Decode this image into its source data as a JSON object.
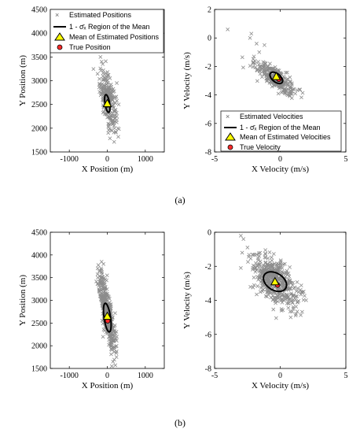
{
  "figure": {
    "label_a": "(a)",
    "label_b": "(b)"
  },
  "legend_position": {
    "labels": [
      "Estimated Positions",
      "1 - σ̄ₓ Region of the Mean",
      "Mean of Estimated Positions",
      "True Position"
    ]
  },
  "legend_velocity": {
    "labels": [
      "Estimated Velocities",
      "1 - σ̄ₓ Region of the Mean",
      "Mean of Estimated Velocities",
      "True Velocity"
    ]
  },
  "colors": {
    "scatter": "#8c8c8c",
    "ellipse": "#000000",
    "mean_fill": "#ffff00",
    "true_fill": "#ff2a2a"
  },
  "chart_data": [
    {
      "id": "a-position",
      "type": "scatter",
      "xlabel": "X Position (m)",
      "ylabel": "Y Position (m)",
      "xlim": [
        -1500,
        1500
      ],
      "ylim": [
        1500,
        4500
      ],
      "xticks": [
        -1000,
        0,
        1000
      ],
      "yticks": [
        1500,
        2000,
        2500,
        3000,
        3500,
        4000,
        4500
      ],
      "legend_placement": "top-left",
      "mean": [
        0,
        2520
      ],
      "true": [
        10,
        2490
      ],
      "ellipse": {
        "center": [
          0,
          2520
        ],
        "rx": 60,
        "ry": 190,
        "angle_deg": 12
      },
      "cloud": {
        "center": [
          20,
          2600
        ],
        "sx": 110,
        "sy": 290,
        "corr": -0.55,
        "count": 260
      },
      "outliers": [
        [
          -200,
          3650
        ],
        [
          -180,
          3500
        ],
        [
          -150,
          3400
        ],
        [
          -120,
          3350
        ],
        [
          250,
          2950
        ],
        [
          300,
          2500
        ],
        [
          280,
          2000
        ],
        [
          250,
          2250
        ]
      ]
    },
    {
      "id": "a-velocity",
      "type": "scatter",
      "xlabel": "X Velocity (m/s)",
      "ylabel": "Y Velocity (m/s)",
      "xlim": [
        -5,
        5
      ],
      "ylim": [
        -8,
        2
      ],
      "xticks": [
        -5,
        0,
        5
      ],
      "yticks": [
        -8,
        -6,
        -4,
        -2,
        0,
        2
      ],
      "legend_placement": "bottom-right",
      "mean": [
        -0.3,
        -2.7
      ],
      "true": [
        -0.1,
        -2.9
      ],
      "ellipse": {
        "center": [
          -0.3,
          -2.8
        ],
        "rx": 0.55,
        "ry": 0.3,
        "angle_deg": -35
      },
      "cloud": {
        "center": [
          -0.4,
          -2.8
        ],
        "sx": 0.75,
        "sy": 0.6,
        "corr": -0.8,
        "count": 300
      },
      "outliers": [
        [
          -4.0,
          0.6
        ],
        [
          -2.2,
          0.3
        ],
        [
          -2.3,
          0.0
        ],
        [
          -1.8,
          -0.4
        ],
        [
          -1.2,
          -0.5
        ],
        [
          -1.6,
          -1.0
        ],
        [
          -2.0,
          -1.3
        ],
        [
          0.8,
          -3.7
        ]
      ]
    },
    {
      "id": "b-position",
      "type": "scatter",
      "xlabel": "X Position (m)",
      "ylabel": "Y Position (m)",
      "xlim": [
        -1500,
        1500
      ],
      "ylim": [
        1500,
        4500
      ],
      "xticks": [
        -1000,
        0,
        1000
      ],
      "yticks": [
        1500,
        2000,
        2500,
        3000,
        3500,
        4000,
        4500
      ],
      "legend_placement": "none",
      "mean": [
        0,
        2650
      ],
      "true": [
        10,
        2550
      ],
      "ellipse": {
        "center": [
          0,
          2620
        ],
        "rx": 85,
        "ry": 320,
        "angle_deg": 10
      },
      "cloud": {
        "center": [
          0,
          2700
        ],
        "sx": 110,
        "sy": 430,
        "corr": -0.8,
        "count": 420
      },
      "outliers": [
        [
          -150,
          3850
        ],
        [
          -100,
          3800
        ],
        [
          -250,
          3500
        ],
        [
          150,
          1650
        ],
        [
          120,
          1550
        ],
        [
          200,
          2450
        ],
        [
          250,
          2200
        ]
      ]
    },
    {
      "id": "b-velocity",
      "type": "scatter",
      "xlabel": "X Velocity (m/s)",
      "ylabel": "Y Velocity (m/s)",
      "xlim": [
        -5,
        5
      ],
      "ylim": [
        -8,
        0
      ],
      "xticks": [
        -5,
        0,
        5
      ],
      "yticks": [
        -8,
        -6,
        -4,
        -2,
        0
      ],
      "legend_placement": "none",
      "mean": [
        -0.4,
        -2.9
      ],
      "true": [
        -0.2,
        -3.1
      ],
      "ellipse": {
        "center": [
          -0.4,
          -2.9
        ],
        "rx": 0.95,
        "ry": 0.5,
        "angle_deg": -30
      },
      "cloud": {
        "center": [
          -0.4,
          -2.9
        ],
        "sx": 0.85,
        "sy": 0.75,
        "corr": -0.55,
        "count": 480
      },
      "outliers": [
        [
          -3.0,
          -0.2
        ],
        [
          -2.8,
          -0.4
        ],
        [
          -2.9,
          -1.2
        ],
        [
          -3.0,
          -2.1
        ],
        [
          -1.6,
          -1.4
        ],
        [
          1.0,
          -4.4
        ],
        [
          1.2,
          -4.8
        ],
        [
          0.8,
          -5.0
        ]
      ]
    }
  ]
}
